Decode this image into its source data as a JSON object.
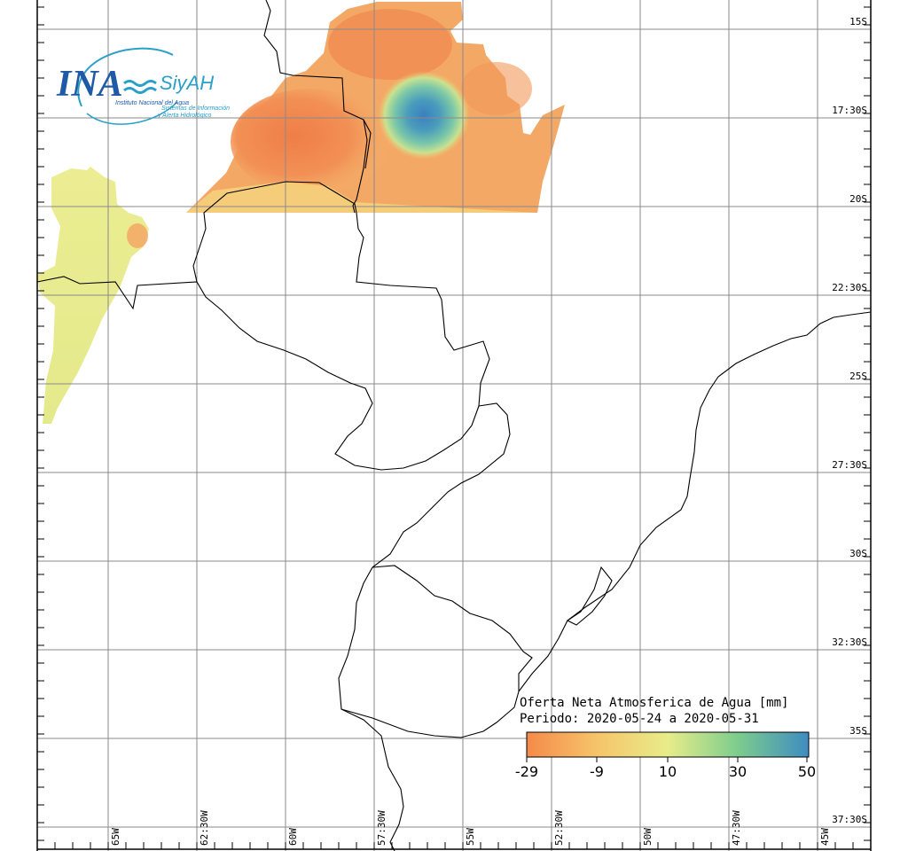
{
  "logo": {
    "main": "INA",
    "brand": "SiyAH",
    "institute": "Instituto Nacional del Agua",
    "system_line1": "Sistemas de Información",
    "system_line2": "y Alerta Hidrológico"
  },
  "latitude_labels": [
    "15S",
    "17:30S",
    "20S",
    "22:30S",
    "25S",
    "27:30S",
    "30S",
    "32:30S",
    "35S",
    "37:30S"
  ],
  "longitude_labels": [
    "65W",
    "62:30W",
    "60W",
    "57:30W",
    "55W",
    "52:30W",
    "50W",
    "47:30W",
    "45W"
  ],
  "legend": {
    "title": "Oferta Neta Atmosferica de Agua [mm]",
    "period": "Periodo: 2020-05-24 a 2020-05-31",
    "ticks": [
      "-29",
      "-9",
      "10",
      "30",
      "50"
    ],
    "colors": [
      "#f58a4a",
      "#f6c46a",
      "#e8ec8a",
      "#7ccc8e",
      "#3f8cc0"
    ]
  }
}
